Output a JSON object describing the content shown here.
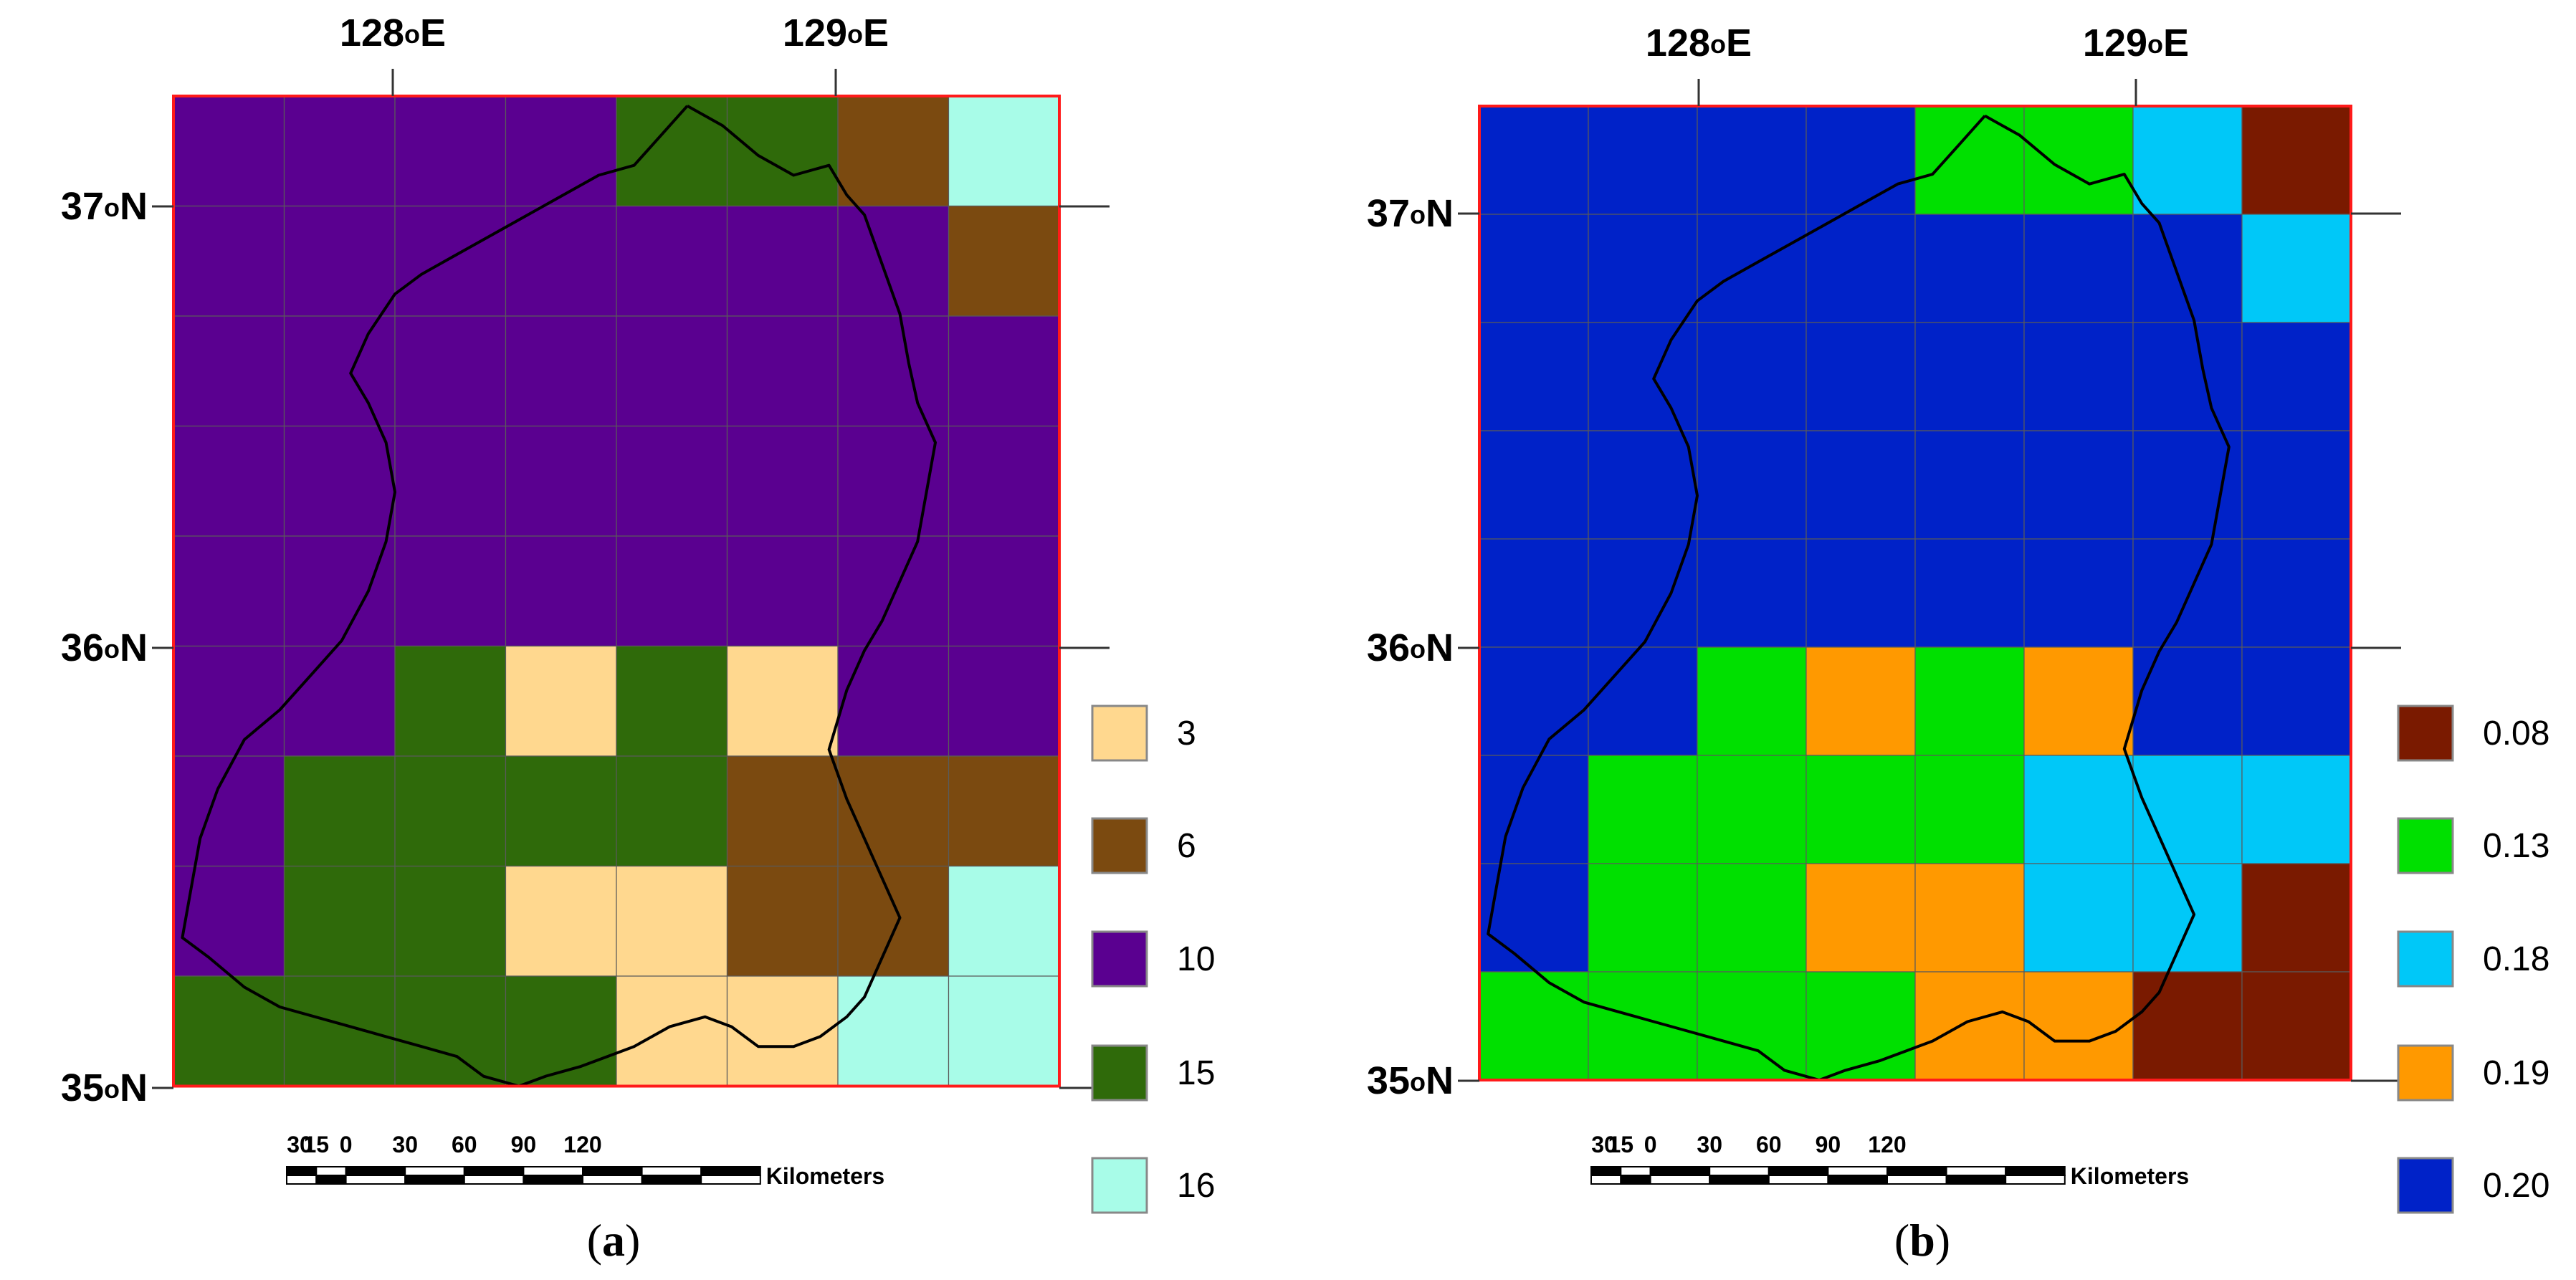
{
  "panels": [
    {
      "id": "a",
      "caption_letter": "a",
      "lon_labels": [
        {
          "text": "128",
          "sup": "o",
          "suffix": "E"
        },
        {
          "text": "129",
          "sup": "o",
          "suffix": "E"
        }
      ],
      "lat_labels": [
        {
          "text": "37",
          "sup": "o",
          "suffix": "N"
        },
        {
          "text": "36",
          "sup": "o",
          "suffix": "N"
        },
        {
          "text": "35",
          "sup": "o",
          "suffix": "N"
        }
      ],
      "legend": [
        {
          "label": "3",
          "color": "#ffd88f"
        },
        {
          "label": "6",
          "color": "#7b4a10"
        },
        {
          "label": "10",
          "color": "#5a0090"
        },
        {
          "label": "15",
          "color": "#2f6a0a"
        },
        {
          "label": "16",
          "color": "#a8fce8"
        }
      ],
      "grid": [
        [
          "10",
          "10",
          "10",
          "10",
          "15",
          "15",
          "6",
          "16"
        ],
        [
          "10",
          "10",
          "10",
          "10",
          "10",
          "10",
          "10",
          "6"
        ],
        [
          "10",
          "10",
          "10",
          "10",
          "10",
          "10",
          "10",
          "10"
        ],
        [
          "10",
          "10",
          "10",
          "10",
          "10",
          "10",
          "10",
          "10"
        ],
        [
          "10",
          "10",
          "10",
          "10",
          "10",
          "10",
          "10",
          "10"
        ],
        [
          "10",
          "10",
          "15",
          "3",
          "15",
          "3",
          "10",
          "10"
        ],
        [
          "10",
          "15",
          "15",
          "15",
          "15",
          "6",
          "6",
          "6"
        ],
        [
          "10",
          "15",
          "15",
          "3",
          "3",
          "6",
          "6",
          "16"
        ],
        [
          "15",
          "15",
          "15",
          "15",
          "3",
          "3",
          "16",
          "16"
        ]
      ]
    },
    {
      "id": "b",
      "caption_letter": "b",
      "lon_labels": [
        {
          "text": "128",
          "sup": "o",
          "suffix": "E"
        },
        {
          "text": "129",
          "sup": "o",
          "suffix": "E"
        }
      ],
      "lat_labels": [
        {
          "text": "37",
          "sup": "o",
          "suffix": "N"
        },
        {
          "text": "36",
          "sup": "o",
          "suffix": "N"
        },
        {
          "text": "35",
          "sup": "o",
          "suffix": "N"
        }
      ],
      "legend": [
        {
          "label": "0.08",
          "color": "#7a1a00"
        },
        {
          "label": "0.13",
          "color": "#00e000"
        },
        {
          "label": "0.18",
          "color": "#00c8f8"
        },
        {
          "label": "0.19",
          "color": "#ff9900"
        },
        {
          "label": "0.20",
          "color": "#0022c8"
        }
      ],
      "grid": [
        [
          "0.20",
          "0.20",
          "0.20",
          "0.20",
          "0.13",
          "0.13",
          "0.18",
          "0.08"
        ],
        [
          "0.20",
          "0.20",
          "0.20",
          "0.20",
          "0.20",
          "0.20",
          "0.20",
          "0.18"
        ],
        [
          "0.20",
          "0.20",
          "0.20",
          "0.20",
          "0.20",
          "0.20",
          "0.20",
          "0.20"
        ],
        [
          "0.20",
          "0.20",
          "0.20",
          "0.20",
          "0.20",
          "0.20",
          "0.20",
          "0.20"
        ],
        [
          "0.20",
          "0.20",
          "0.20",
          "0.20",
          "0.20",
          "0.20",
          "0.20",
          "0.20"
        ],
        [
          "0.20",
          "0.20",
          "0.13",
          "0.19",
          "0.13",
          "0.19",
          "0.20",
          "0.20"
        ],
        [
          "0.20",
          "0.13",
          "0.13",
          "0.13",
          "0.13",
          "0.18",
          "0.18",
          "0.18"
        ],
        [
          "0.20",
          "0.13",
          "0.13",
          "0.19",
          "0.19",
          "0.18",
          "0.18",
          "0.08"
        ],
        [
          "0.13",
          "0.13",
          "0.13",
          "0.13",
          "0.19",
          "0.19",
          "0.08",
          "0.08"
        ]
      ]
    }
  ],
  "scale_bar": {
    "ticks": [
      "30",
      "15",
      "0",
      "30",
      "60",
      "90",
      "120"
    ],
    "unit": "Kilometers"
  },
  "caption_open": "(",
  "caption_close": ")"
}
